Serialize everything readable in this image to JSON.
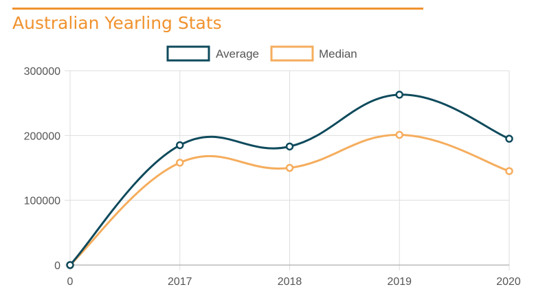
{
  "title": "Australian Yearling Stats",
  "colors": {
    "accent": "#f0922e",
    "average": "#0e4a5c",
    "median": "#f5ad5d",
    "grid": "#dddddd"
  },
  "chart_data": {
    "type": "line",
    "title": "Australian Yearling Stats",
    "xlabel": "",
    "ylabel": "",
    "categories": [
      "0",
      "2017",
      "2018",
      "2019",
      "2020"
    ],
    "ylim": [
      0,
      300000
    ],
    "yticks": [
      "300000",
      "200000",
      "100000",
      "0"
    ],
    "legend": "top-center",
    "grid": true,
    "series": [
      {
        "name": "Average",
        "color": "#0e4a5c",
        "values": [
          0,
          185000,
          183000,
          263000,
          195000
        ]
      },
      {
        "name": "Median",
        "color": "#f5ad5d",
        "values": [
          0,
          158000,
          150000,
          201000,
          145000
        ]
      }
    ]
  }
}
